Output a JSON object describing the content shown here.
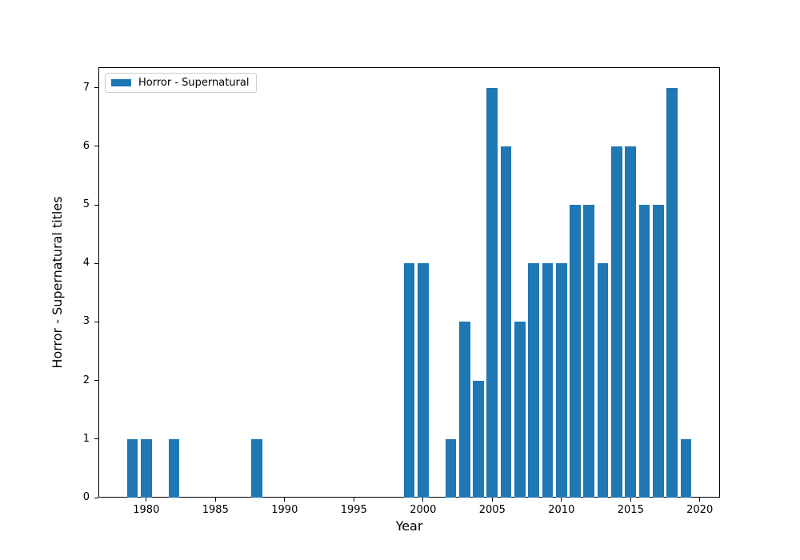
{
  "chart_data": {
    "type": "bar",
    "title": "",
    "xlabel": "Year",
    "ylabel": "Horror - Supernatural titles",
    "legend": {
      "label": "Horror - Supernatural",
      "position": "upper left"
    },
    "bar_color": "#1f77b4",
    "grid": false,
    "xlim": [
      1976.54,
      2021.46
    ],
    "ylim": [
      0,
      7.35
    ],
    "xticks": [
      1980,
      1985,
      1990,
      1995,
      2000,
      2005,
      2010,
      2015,
      2020
    ],
    "yticks": [
      0,
      1,
      2,
      3,
      4,
      5,
      6,
      7
    ],
    "bar_width_years": 0.8,
    "categories": [
      1979,
      1980,
      1982,
      1988,
      1999,
      2000,
      2002,
      2003,
      2004,
      2005,
      2006,
      2007,
      2008,
      2009,
      2010,
      2011,
      2012,
      2013,
      2014,
      2015,
      2016,
      2017,
      2018,
      2019
    ],
    "values": [
      1,
      1,
      1,
      1,
      4,
      4,
      1,
      3,
      2,
      7,
      6,
      3,
      4,
      4,
      4,
      5,
      5,
      4,
      6,
      6,
      5,
      5,
      7,
      1
    ]
  }
}
